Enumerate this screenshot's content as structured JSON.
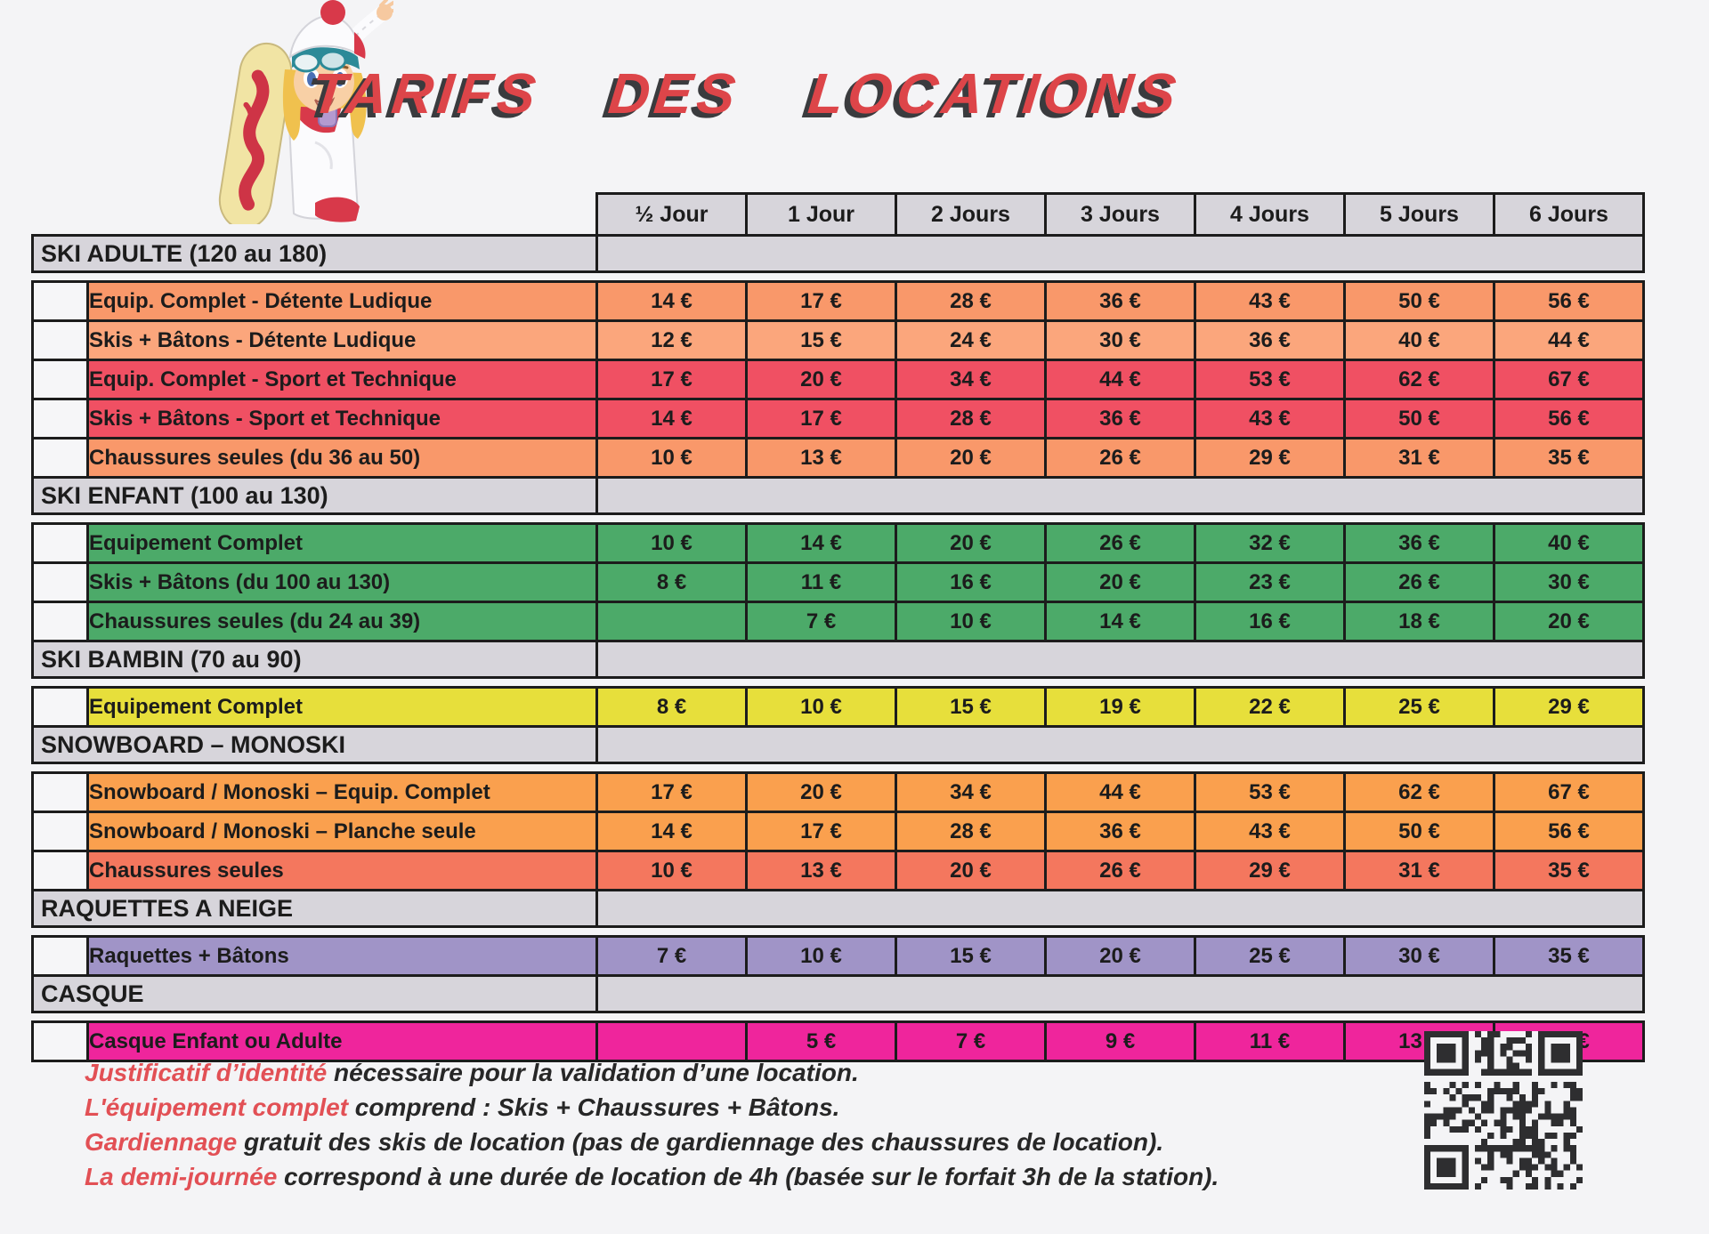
{
  "title": "TARIFS DES LOCATIONS",
  "table": {
    "column_headers": [
      "½ Jour",
      "1 Jour",
      "2 Jours",
      "3 Jours",
      "4 Jours",
      "5 Jours",
      "6 Jours"
    ],
    "sections": [
      {
        "header": "SKI ADULTE (120 au 180)",
        "rows": [
          {
            "label": "Equip. Complet - Détente Ludique",
            "color": "#f9986a",
            "prices": [
              "14 €",
              "17 €",
              "28 €",
              "36 €",
              "43 €",
              "50 €",
              "56 €"
            ]
          },
          {
            "label": "Skis + Bâtons - Détente Ludique",
            "color": "#fba67c",
            "prices": [
              "12 €",
              "15 €",
              "24 €",
              "30 €",
              "36 €",
              "40 €",
              "44 €"
            ]
          },
          {
            "label": "Equip. Complet - Sport et Technique",
            "color": "#f05063",
            "prices": [
              "17 €",
              "20 €",
              "34 €",
              "44 €",
              "53 €",
              "62 €",
              "67 €"
            ]
          },
          {
            "label": "Skis + Bâtons - Sport et Technique",
            "color": "#f05063",
            "prices": [
              "14 €",
              "17 €",
              "28 €",
              "36 €",
              "43 €",
              "50 €",
              "56 €"
            ]
          },
          {
            "label": "Chaussures seules (du 36 au 50)",
            "color": "#f9986a",
            "prices": [
              "10 €",
              "13 €",
              "20 €",
              "26 €",
              "29 €",
              "31 €",
              "35 €"
            ]
          }
        ]
      },
      {
        "header": "SKI ENFANT (100 au 130)",
        "rows": [
          {
            "label": "Equipement Complet",
            "color": "#4caa69",
            "prices": [
              "10 €",
              "14 €",
              "20 €",
              "26 €",
              "32 €",
              "36 €",
              "40 €"
            ]
          },
          {
            "label": "Skis + Bâtons (du 100 au 130)",
            "color": "#4caa69",
            "prices": [
              "8 €",
              "11 €",
              "16 €",
              "20 €",
              "23 €",
              "26 €",
              "30 €"
            ]
          },
          {
            "label": "Chaussures seules (du 24 au 39)",
            "color": "#4caa69",
            "prices": [
              "",
              "7 €",
              "10 €",
              "14 €",
              "16 €",
              "18 €",
              "20 €"
            ]
          }
        ]
      },
      {
        "header": "SKI BAMBIN (70 au 90)",
        "rows": [
          {
            "label": "Equipement Complet",
            "color": "#e7df3b",
            "prices": [
              "8 €",
              "10 €",
              "15 €",
              "19 €",
              "22 €",
              "25 €",
              "29 €"
            ]
          }
        ]
      },
      {
        "header": "SNOWBOARD – MONOSKI",
        "rows": [
          {
            "label": "Snowboard / Monoski – Equip. Complet",
            "color": "#faa04e",
            "prices": [
              "17 €",
              "20 €",
              "34 €",
              "44 €",
              "53 €",
              "62 €",
              "67 €"
            ]
          },
          {
            "label": "Snowboard / Monoski – Planche seule",
            "color": "#faa04e",
            "prices": [
              "14 €",
              "17 €",
              "28 €",
              "36 €",
              "43 €",
              "50 €",
              "56 €"
            ]
          },
          {
            "label": "Chaussures seules",
            "color": "#f4775e",
            "prices": [
              "10 €",
              "13 €",
              "20 €",
              "26 €",
              "29 €",
              "31 €",
              "35 €"
            ]
          }
        ]
      },
      {
        "header": "RAQUETTES A NEIGE",
        "rows": [
          {
            "label": "Raquettes + Bâtons",
            "color": "#a094c7",
            "prices": [
              "7 €",
              "10 €",
              "15 €",
              "20 €",
              "25 €",
              "30 €",
              "35 €"
            ]
          }
        ]
      },
      {
        "header": "CASQUE",
        "rows": [
          {
            "label": "Casque Enfant ou Adulte",
            "color": "#ef259c",
            "prices": [
              "",
              "5 €",
              "7 €",
              "9 €",
              "11 €",
              "13 €",
              "15 €"
            ]
          }
        ]
      }
    ]
  },
  "notes": [
    {
      "lead": "Justificatif d’identité",
      "rest": " nécessaire pour la validation d’une location."
    },
    {
      "lead": "L'équipement complet",
      "rest": " comprend : Skis + Chaussures + Bâtons."
    },
    {
      "lead": "Gardiennage",
      "rest": " gratuit des skis de location (pas de gardiennage des chaussures de location)."
    },
    {
      "lead": "La demi-journée",
      "rest": " correspond à une durée de location de 4h (basée sur le forfait 3h de la station)."
    }
  ],
  "colors": {
    "page_bg": "#f4f4f6",
    "table_border": "#1c1c1c",
    "header_gray": "#d7d5db",
    "title_red": "#dd4549",
    "note_red": "#e25055",
    "note_text": "#272727"
  }
}
